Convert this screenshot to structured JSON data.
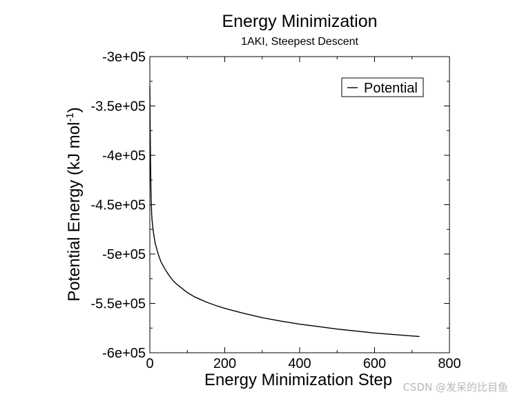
{
  "chart_data": {
    "type": "line",
    "title": "Energy Minimization",
    "subtitle": "1AKI, Steepest Descent",
    "xlabel": "Energy Minimization Step",
    "ylabel_main": "Potential Energy (kJ mol",
    "ylabel_sup": "-1",
    "ylabel_close": ")",
    "xlim": [
      0,
      800
    ],
    "ylim": [
      -600000,
      -300000
    ],
    "x_ticks": [
      0,
      200,
      400,
      600,
      800
    ],
    "x_tick_labels": [
      "0",
      "200",
      "400",
      "600",
      "800"
    ],
    "y_ticks": [
      -300000,
      -350000,
      -400000,
      -450000,
      -500000,
      -550000,
      -600000
    ],
    "y_tick_labels": [
      "-3e+05",
      "-3.5e+05",
      "-4e+05",
      "-4.5e+05",
      "-5e+05",
      "-5.5e+05",
      "-6e+05"
    ],
    "grid": false,
    "legend_position": "top-right",
    "series": [
      {
        "name": "Potential",
        "color": "#000000",
        "x": [
          0,
          1,
          2,
          3,
          4,
          5,
          6,
          8,
          10,
          12,
          15,
          20,
          25,
          30,
          40,
          50,
          60,
          70,
          80,
          100,
          120,
          150,
          175,
          200,
          250,
          300,
          350,
          400,
          450,
          500,
          550,
          600,
          650,
          700,
          720
        ],
        "y": [
          -330000,
          -375000,
          -410000,
          -435000,
          -450000,
          -460000,
          -466000,
          -473000,
          -479000,
          -484000,
          -490000,
          -497000,
          -503000,
          -508000,
          -515000,
          -521000,
          -526000,
          -530000,
          -533000,
          -539000,
          -543500,
          -548500,
          -552000,
          -555000,
          -560000,
          -564500,
          -568000,
          -571000,
          -573500,
          -576000,
          -578000,
          -580000,
          -581500,
          -583000,
          -583500
        ]
      }
    ]
  },
  "watermark": "CSDN @发呆的比目鱼"
}
